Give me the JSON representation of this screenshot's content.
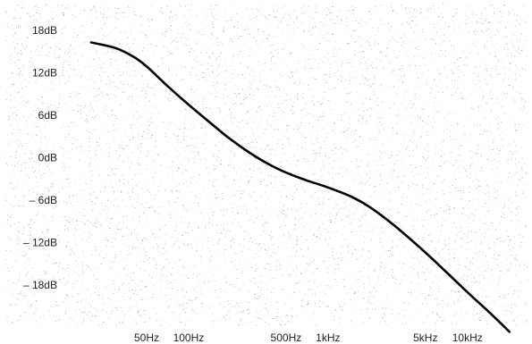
{
  "chart_data": {
    "type": "line",
    "title": "",
    "xlabel": "",
    "ylabel": "",
    "x_scale": "log",
    "y_ticks": [
      {
        "value": 18,
        "label": "18dB"
      },
      {
        "value": 12,
        "label": "12dB"
      },
      {
        "value": 6,
        "label": "6dB"
      },
      {
        "value": 0,
        "label": "0dB"
      },
      {
        "value": -6,
        "label": "– 6dB"
      },
      {
        "value": -12,
        "label": "– 12dB"
      },
      {
        "value": -18,
        "label": "– 18dB"
      }
    ],
    "x_ticks": [
      {
        "value": 50,
        "label": "50Hz"
      },
      {
        "value": 100,
        "label": "100Hz"
      },
      {
        "value": 500,
        "label": "500Hz"
      },
      {
        "value": 1000,
        "label": "1kHz"
      },
      {
        "value": 5000,
        "label": "5kHz"
      },
      {
        "value": 10000,
        "label": "10kHz"
      }
    ],
    "series": [
      {
        "color": "#000000",
        "points": [
          [
            20,
            16.3
          ],
          [
            30,
            15.5
          ],
          [
            40,
            14.3
          ],
          [
            50,
            12.9
          ],
          [
            70,
            10.2
          ],
          [
            100,
            7.5
          ],
          [
            150,
            4.6
          ],
          [
            200,
            2.6
          ],
          [
            300,
            0.2
          ],
          [
            400,
            -1.2
          ],
          [
            500,
            -2.1
          ],
          [
            700,
            -3.2
          ],
          [
            1000,
            -4.2
          ],
          [
            1500,
            -5.6
          ],
          [
            2000,
            -7.0
          ],
          [
            3000,
            -9.6
          ],
          [
            5000,
            -13.4
          ],
          [
            7000,
            -16.1
          ],
          [
            10000,
            -19.0
          ],
          [
            15000,
            -22.2
          ],
          [
            20000,
            -24.6
          ]
        ]
      }
    ],
    "grid": false,
    "background": "#ffffff"
  }
}
